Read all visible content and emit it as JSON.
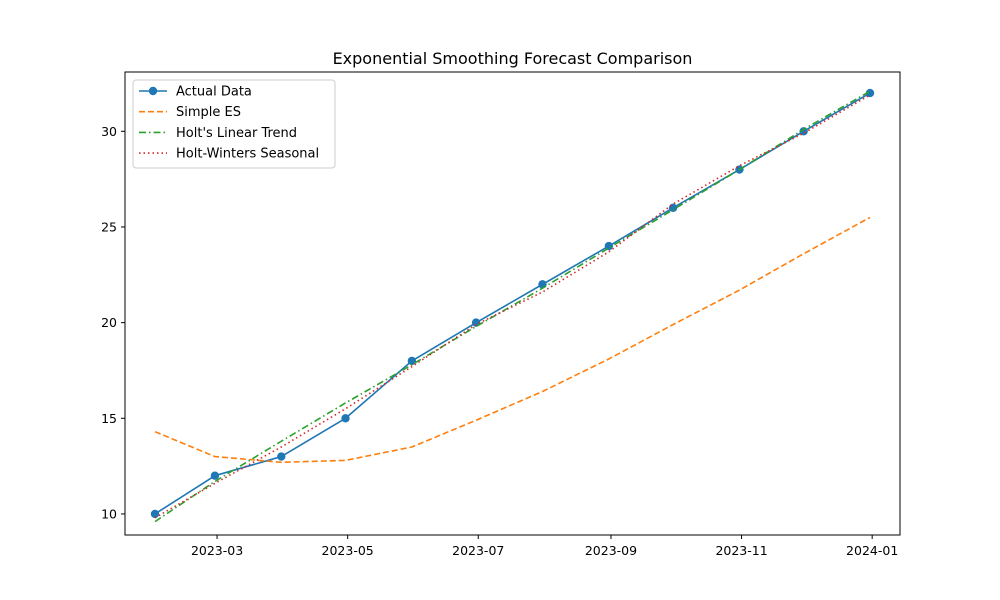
{
  "chart_data": {
    "type": "line",
    "title": "Exponential Smoothing Forecast Comparison",
    "xlabel": "",
    "ylabel": "",
    "x": [
      "2023-01-31",
      "2023-02-28",
      "2023-03-31",
      "2023-04-30",
      "2023-05-31",
      "2023-06-30",
      "2023-07-31",
      "2023-08-31",
      "2023-09-30",
      "2023-10-31",
      "2023-11-30",
      "2023-12-31"
    ],
    "series": [
      {
        "name": "Actual Data",
        "color": "#1f77b4",
        "style": "solid-markers",
        "values": [
          10,
          12,
          13,
          15,
          18,
          20,
          22,
          24,
          26,
          28,
          30,
          32
        ]
      },
      {
        "name": "Simple ES",
        "color": "#ff7f0e",
        "style": "dashed",
        "values": [
          14.3,
          13.0,
          12.7,
          12.8,
          13.5,
          14.9,
          16.4,
          18.1,
          19.9,
          21.7,
          23.6,
          25.5
        ]
      },
      {
        "name": "Holt's Linear Trend",
        "color": "#2ca02c",
        "style": "dashdot",
        "values": [
          9.6,
          11.7,
          13.8,
          15.8,
          17.8,
          19.8,
          21.8,
          23.9,
          25.9,
          28.0,
          30.1,
          32.1
        ]
      },
      {
        "name": "Holt-Winters Seasonal",
        "color": "#d62728",
        "style": "dotted",
        "values": [
          9.8,
          11.6,
          13.5,
          15.5,
          17.7,
          19.9,
          21.6,
          23.7,
          26.2,
          28.2,
          29.9,
          31.9
        ]
      }
    ],
    "x_ticks": [
      {
        "date": "2023-03-01",
        "label": "2023-03"
      },
      {
        "date": "2023-05-01",
        "label": "2023-05"
      },
      {
        "date": "2023-07-01",
        "label": "2023-07"
      },
      {
        "date": "2023-09-01",
        "label": "2023-09"
      },
      {
        "date": "2023-11-01",
        "label": "2023-11"
      },
      {
        "date": "2024-01-01",
        "label": "2024-01"
      }
    ],
    "y_ticks": [
      10,
      15,
      20,
      25,
      30
    ],
    "xlim": [
      "2023-01-17",
      "2024-01-14"
    ],
    "ylim": [
      8.9,
      33.1
    ],
    "grid": false,
    "legend": "upper-left"
  }
}
